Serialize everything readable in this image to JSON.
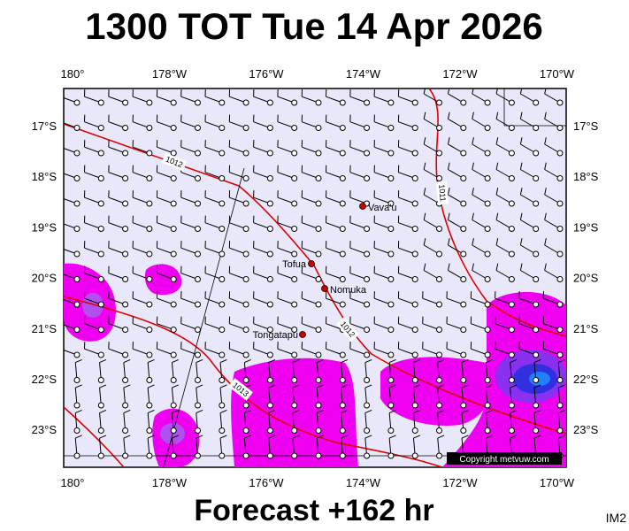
{
  "header": {
    "title": "1300 TOT Tue 14 Apr 2026"
  },
  "footer": {
    "forecast": "Forecast +162 hr",
    "code": "IM2"
  },
  "map": {
    "lon_labels": [
      "180°",
      "178°W",
      "176°W",
      "174°W",
      "172°W",
      "170°W"
    ],
    "lat_labels": [
      "17°S",
      "18°S",
      "19°S",
      "20°S",
      "21°S",
      "22°S",
      "23°S"
    ],
    "places": [
      "Vava'u",
      "Tofua",
      "Nomuka",
      "Tongatapu"
    ],
    "isobars": [
      "1012",
      "1011",
      "1012",
      "1013"
    ],
    "copyright": "Copyright metvuw.com"
  }
}
